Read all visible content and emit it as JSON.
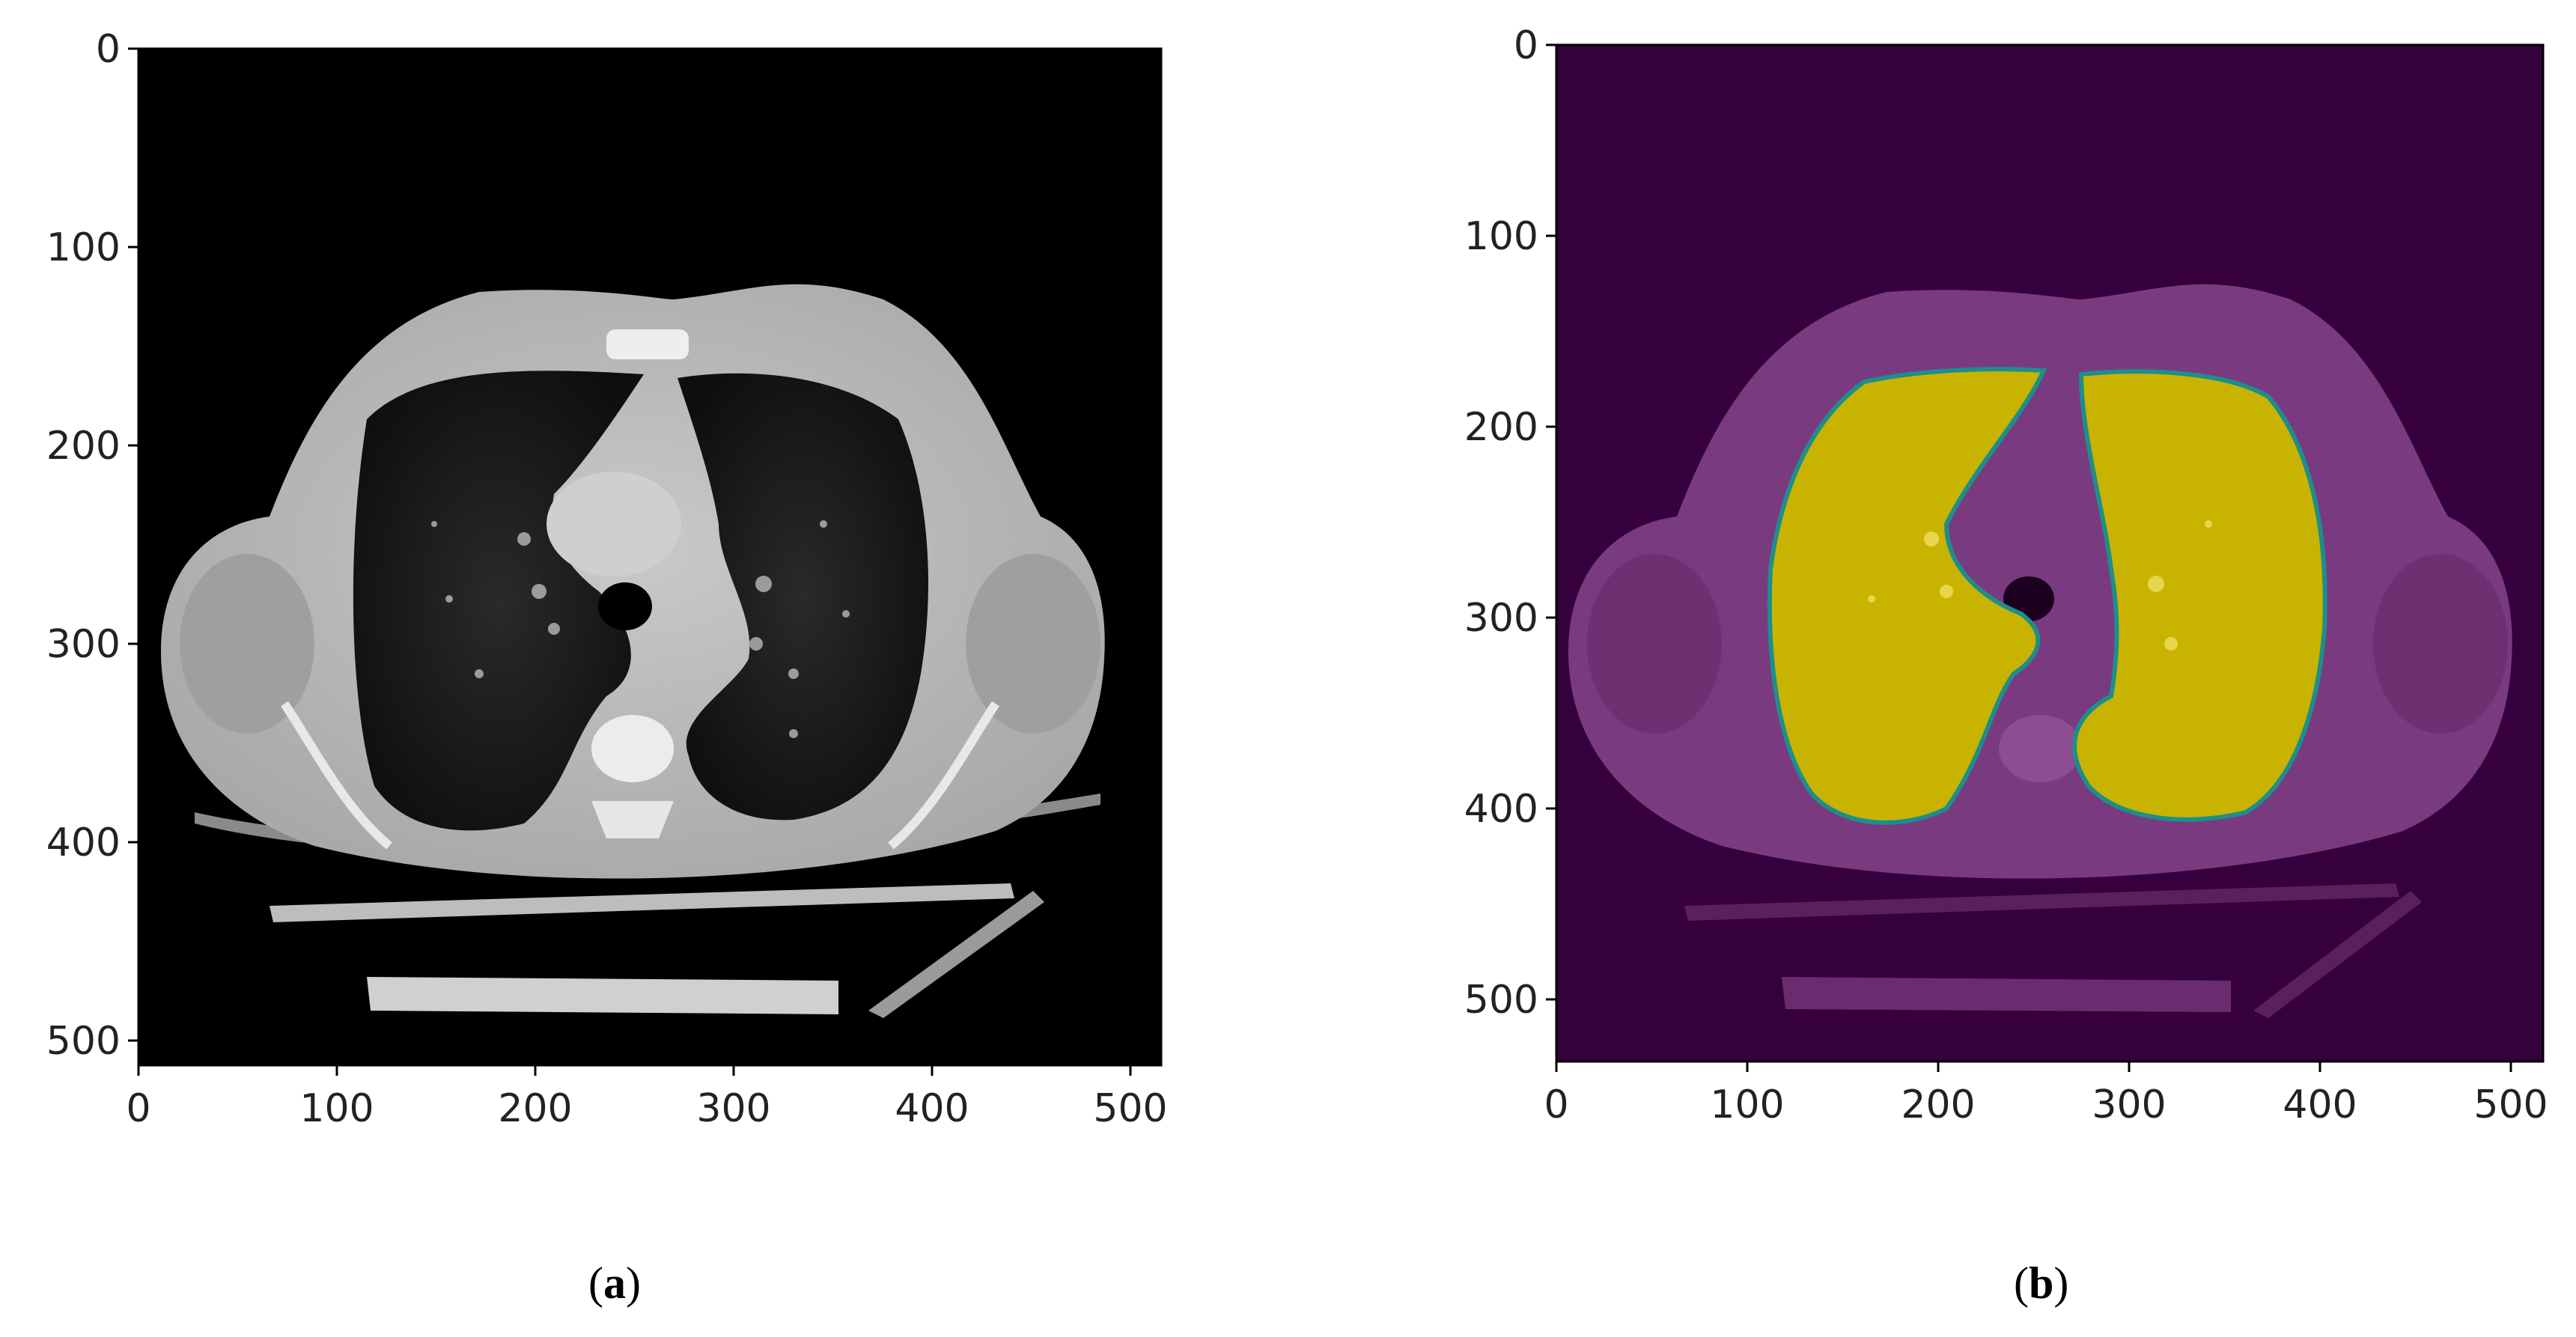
{
  "figure": {
    "panels": [
      {
        "id": "a",
        "caption_letter": "a",
        "image_style": "grayscale axial chest CT slice",
        "colors": {
          "background": "#000000",
          "tissue": "#b9b9b9",
          "lung": "#141414"
        },
        "x_ticks": [
          "0",
          "100",
          "200",
          "300",
          "400",
          "500"
        ],
        "y_ticks": [
          "0",
          "100",
          "200",
          "300",
          "400",
          "500"
        ]
      },
      {
        "id": "b",
        "caption_letter": "b",
        "image_style": "lung segmentation mask overlay (viridis)",
        "colors": {
          "background": "#36003d",
          "tissue": "#7a3a7f",
          "mask": "#c8b400",
          "mask_edge": "#1d8f8a"
        },
        "x_ticks": [
          "0",
          "100",
          "200",
          "300",
          "400",
          "500"
        ],
        "y_ticks": [
          "0",
          "100",
          "200",
          "300",
          "400",
          "500"
        ]
      }
    ]
  }
}
